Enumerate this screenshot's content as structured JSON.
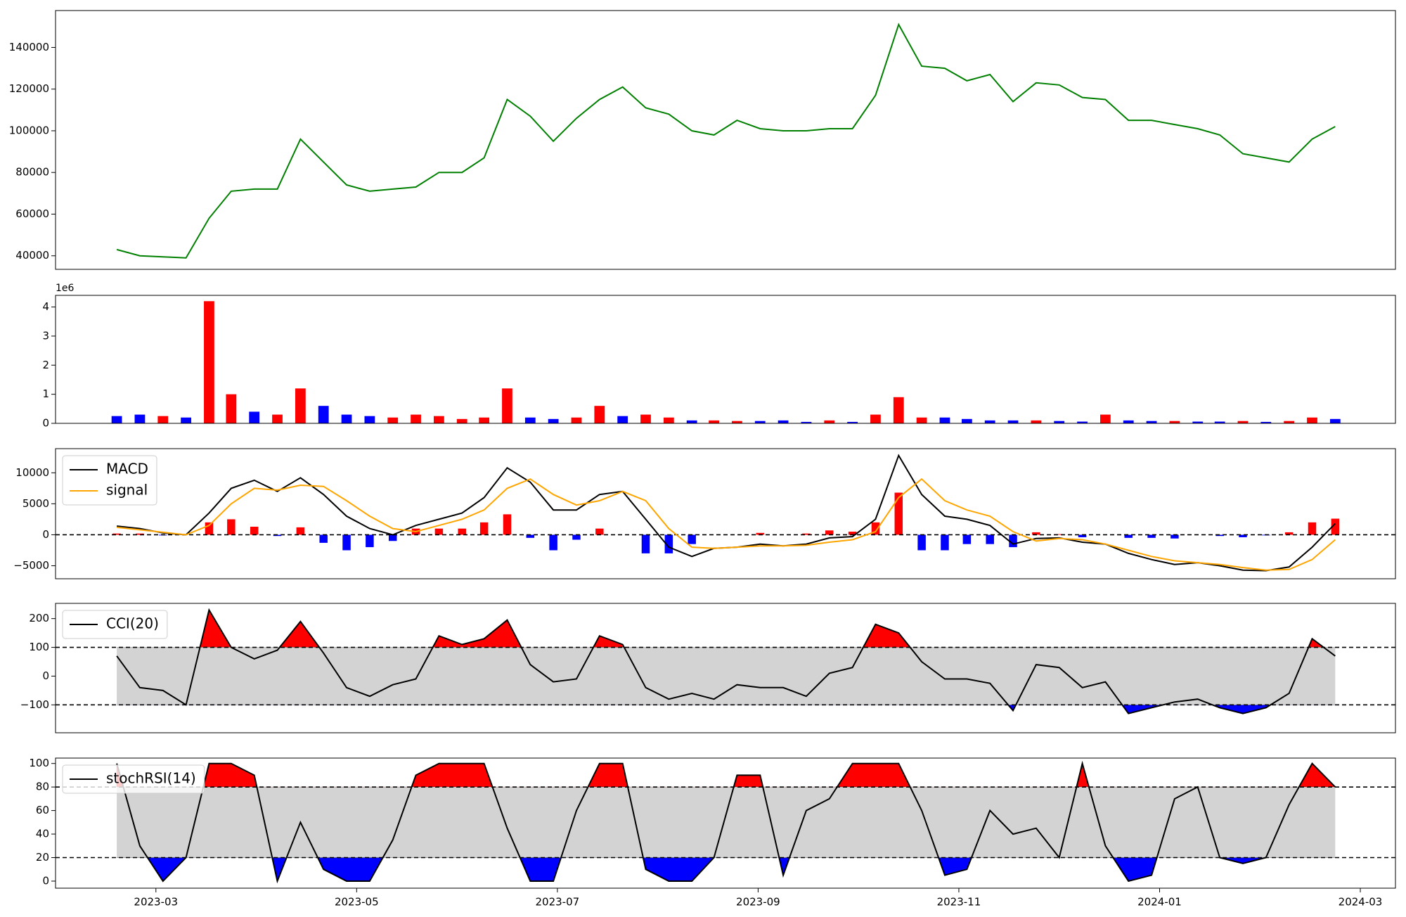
{
  "chart_data": [
    {
      "type": "line",
      "x": [
        -0.39,
        -0.16,
        0.07,
        0.3,
        0.53,
        0.75,
        0.98,
        1.21,
        1.44,
        1.67,
        1.9,
        2.13,
        2.36,
        2.59,
        2.82,
        3.05,
        3.27,
        3.5,
        3.73,
        3.96,
        4.19,
        4.42,
        4.65,
        4.88,
        5.11,
        5.34,
        5.56,
        5.79,
        6.02,
        6.25,
        6.48,
        6.71,
        6.94,
        7.17,
        7.4,
        7.63,
        7.86,
        8.08,
        8.31,
        8.54,
        8.77,
        9.0,
        9.23,
        9.46,
        9.69,
        9.92,
        10.15,
        10.38,
        10.6,
        10.83,
        11.06,
        11.29,
        11.52,
        11.75
      ],
      "series": [
        {
          "color": "green",
          "values": [
            43000,
            40000,
            39500,
            39000,
            58000,
            71000,
            72000,
            72000,
            96000,
            85000,
            74000,
            71000,
            72000,
            73000,
            80000,
            80000,
            87000,
            115000,
            107000,
            95000,
            106000,
            115000,
            121000,
            111000,
            108000,
            100000,
            98000,
            105000,
            101000,
            100000,
            100000,
            101000,
            101000,
            117000,
            151000,
            131000,
            130000,
            124000,
            127000,
            114000,
            123000,
            122000,
            116000,
            115000,
            105000,
            105000,
            103000,
            101000,
            98000,
            89000,
            87000,
            85000,
            96000,
            102000
          ]
        }
      ],
      "xlim": [
        -1,
        12.35
      ],
      "ylim": [
        33500,
        157700
      ],
      "yticks": [
        40000,
        60000,
        80000,
        100000,
        120000,
        140000
      ]
    },
    {
      "type": "bar",
      "x": [
        -0.39,
        -0.16,
        0.07,
        0.3,
        0.53,
        0.75,
        0.98,
        1.21,
        1.44,
        1.67,
        1.9,
        2.13,
        2.36,
        2.59,
        2.82,
        3.05,
        3.27,
        3.5,
        3.73,
        3.96,
        4.19,
        4.42,
        4.65,
        4.88,
        5.11,
        5.34,
        5.56,
        5.79,
        6.02,
        6.25,
        6.48,
        6.71,
        6.94,
        7.17,
        7.4,
        7.63,
        7.86,
        8.08,
        8.31,
        8.54,
        8.77,
        9.0,
        9.23,
        9.46,
        9.69,
        9.92,
        10.15,
        10.38,
        10.6,
        10.83,
        11.06,
        11.29,
        11.52,
        11.75
      ],
      "values": [
        0.25,
        0.3,
        0.25,
        0.2,
        4.2,
        1.0,
        0.4,
        0.3,
        1.2,
        0.6,
        0.3,
        0.25,
        0.2,
        0.3,
        0.25,
        0.15,
        0.2,
        1.2,
        0.2,
        0.15,
        0.2,
        0.6,
        0.25,
        0.3,
        0.2,
        0.1,
        0.1,
        0.08,
        0.08,
        0.1,
        0.05,
        0.1,
        0.05,
        0.3,
        0.9,
        0.2,
        0.2,
        0.15,
        0.1,
        0.1,
        0.1,
        0.08,
        0.06,
        0.3,
        0.1,
        0.08,
        0.08,
        0.06,
        0.06,
        0.08,
        0.05,
        0.08,
        0.2,
        0.15
      ],
      "colors": [
        "blue",
        "blue",
        "red",
        "blue",
        "red",
        "red",
        "blue",
        "red",
        "red",
        "blue",
        "blue",
        "blue",
        "red",
        "red",
        "red",
        "red",
        "red",
        "red",
        "blue",
        "blue",
        "red",
        "red",
        "blue",
        "red",
        "red",
        "blue",
        "red",
        "red",
        "blue",
        "blue",
        "blue",
        "red",
        "blue",
        "red",
        "red",
        "red",
        "blue",
        "blue",
        "blue",
        "blue",
        "red",
        "blue",
        "blue",
        "red",
        "blue",
        "blue",
        "red",
        "blue",
        "blue",
        "red",
        "blue",
        "red",
        "red",
        "blue"
      ],
      "y_offset_label": "1e6",
      "xlim": [
        -1,
        12.35
      ],
      "ylim": [
        0,
        4.4
      ],
      "yticks": [
        0,
        1,
        2,
        3,
        4
      ]
    },
    {
      "type": "macd",
      "x": [
        -0.39,
        -0.16,
        0.07,
        0.3,
        0.53,
        0.75,
        0.98,
        1.21,
        1.44,
        1.67,
        1.9,
        2.13,
        2.36,
        2.59,
        2.82,
        3.05,
        3.27,
        3.5,
        3.73,
        3.96,
        4.19,
        4.42,
        4.65,
        4.88,
        5.11,
        5.34,
        5.56,
        5.79,
        6.02,
        6.25,
        6.48,
        6.71,
        6.94,
        7.17,
        7.4,
        7.63,
        7.86,
        8.08,
        8.31,
        8.54,
        8.77,
        9.0,
        9.23,
        9.46,
        9.69,
        9.92,
        10.15,
        10.38,
        10.6,
        10.83,
        11.06,
        11.29,
        11.52,
        11.75
      ],
      "series": [
        {
          "name": "MACD",
          "color": "black",
          "values": [
            1400,
            1000,
            300,
            0,
            3500,
            7500,
            8800,
            7000,
            9200,
            6500,
            3000,
            1000,
            0,
            1500,
            2500,
            3500,
            6000,
            10800,
            8500,
            4000,
            4000,
            6500,
            7000,
            2500,
            -2000,
            -3500,
            -2200,
            -2000,
            -1500,
            -1800,
            -1500,
            -500,
            -300,
            2500,
            12800,
            6500,
            3000,
            2500,
            1500,
            -1500,
            -600,
            -500,
            -1200,
            -1500,
            -3000,
            -4000,
            -4800,
            -4500,
            -5000,
            -5700,
            -5800,
            -5200,
            -2000,
            1800
          ]
        },
        {
          "name": "signal",
          "color": "orange",
          "values": [
            1200,
            800,
            400,
            0,
            1500,
            5000,
            7500,
            7200,
            8000,
            7800,
            5500,
            3000,
            1000,
            500,
            1500,
            2500,
            4000,
            7500,
            9000,
            6500,
            4800,
            5500,
            7000,
            5500,
            1000,
            -2000,
            -2200,
            -2000,
            -1800,
            -1800,
            -1700,
            -1200,
            -800,
            500,
            6000,
            9000,
            5500,
            4000,
            3000,
            500,
            -1000,
            -600,
            -800,
            -1500,
            -2500,
            -3500,
            -4200,
            -4500,
            -4800,
            -5300,
            -5700,
            -5600,
            -4000,
            -800
          ]
        }
      ],
      "histogram": {
        "values": [
          200,
          200,
          -100,
          0,
          2000,
          2500,
          1300,
          -200,
          1200,
          -1300,
          -2500,
          -2000,
          -1000,
          1000,
          1000,
          1000,
          2000,
          3300,
          -500,
          -2500,
          -800,
          1000,
          0,
          -3000,
          -3000,
          -1500,
          0,
          0,
          300,
          0,
          200,
          700,
          500,
          2000,
          6800,
          -2500,
          -2500,
          -1500,
          -1500,
          -2000,
          400,
          100,
          -400,
          0,
          -500,
          -500,
          -600,
          0,
          -200,
          -400,
          -100,
          400,
          2000,
          2600
        ],
        "colors": {
          "positive": "red",
          "negative": "blue"
        }
      },
      "levels": [
        0
      ],
      "legend": "upper left",
      "xlim": [
        -1,
        12.35
      ],
      "ylim": [
        -7100,
        13900
      ],
      "yticks": [
        {
          "value": -5000,
          "label": "−5000"
        },
        0,
        5000,
        10000
      ]
    },
    {
      "type": "oscillator",
      "x": [
        -0.39,
        -0.16,
        0.07,
        0.3,
        0.53,
        0.75,
        0.98,
        1.21,
        1.44,
        1.67,
        1.9,
        2.13,
        2.36,
        2.59,
        2.82,
        3.05,
        3.27,
        3.5,
        3.73,
        3.96,
        4.19,
        4.42,
        4.65,
        4.88,
        5.11,
        5.34,
        5.56,
        5.79,
        6.02,
        6.25,
        6.48,
        6.71,
        6.94,
        7.17,
        7.4,
        7.63,
        7.86,
        8.08,
        8.31,
        8.54,
        8.77,
        9.0,
        9.23,
        9.46,
        9.69,
        9.92,
        10.15,
        10.38,
        10.6,
        10.83,
        11.06,
        11.29,
        11.52,
        11.75
      ],
      "series": [
        {
          "name": "CCI(20)",
          "color": "black",
          "values": [
            70,
            -40,
            -50,
            -100,
            230,
            100,
            60,
            90,
            190,
            80,
            -40,
            -70,
            -30,
            -10,
            140,
            110,
            130,
            195,
            40,
            -20,
            -10,
            140,
            110,
            -40,
            -80,
            -60,
            -80,
            -30,
            -40,
            -40,
            -70,
            10,
            30,
            180,
            150,
            50,
            -10,
            -10,
            -25,
            -120,
            40,
            30,
            -40,
            -20,
            -130,
            -110,
            -90,
            -80,
            -110,
            -130,
            -110,
            -60,
            130,
            70
          ]
        }
      ],
      "levels": [
        -100,
        100
      ],
      "band_color": "lightgray",
      "fill_colors": {
        "upper": "red",
        "lower": "blue"
      },
      "legend": "upper left",
      "xlim": [
        -1,
        12.35
      ],
      "ylim": [
        -197,
        253
      ],
      "yticks": [
        {
          "value": -100,
          "label": "−100"
        },
        0,
        100,
        200
      ]
    },
    {
      "type": "oscillator",
      "x": [
        -0.39,
        -0.16,
        0.07,
        0.3,
        0.53,
        0.75,
        0.98,
        1.21,
        1.44,
        1.67,
        1.9,
        2.13,
        2.36,
        2.59,
        2.82,
        3.05,
        3.27,
        3.5,
        3.73,
        3.96,
        4.19,
        4.42,
        4.65,
        4.88,
        5.11,
        5.34,
        5.56,
        5.79,
        6.02,
        6.25,
        6.48,
        6.71,
        6.94,
        7.17,
        7.4,
        7.63,
        7.86,
        8.08,
        8.31,
        8.54,
        8.77,
        9.0,
        9.23,
        9.46,
        9.69,
        9.92,
        10.15,
        10.38,
        10.6,
        10.83,
        11.06,
        11.29,
        11.52,
        11.75
      ],
      "series": [
        {
          "name": "stochRSI(14)",
          "color": "black",
          "values": [
            100,
            30,
            0,
            20,
            100,
            100,
            90,
            0,
            50,
            10,
            0,
            0,
            35,
            90,
            100,
            100,
            100,
            45,
            0,
            0,
            60,
            100,
            100,
            10,
            0,
            0,
            20,
            90,
            90,
            5,
            60,
            70,
            100,
            100,
            100,
            60,
            5,
            10,
            60,
            40,
            45,
            20,
            100,
            30,
            0,
            5,
            70,
            80,
            20,
            15,
            20,
            65,
            100,
            80
          ]
        }
      ],
      "levels": [
        20,
        80
      ],
      "band_color": "lightgray",
      "fill_colors": {
        "upper": "red",
        "lower": "blue"
      },
      "legend": "upper left",
      "xlim": [
        -1,
        12.35
      ],
      "ylim": [
        -6,
        104.6
      ],
      "yticks": [
        0,
        20,
        40,
        60,
        80,
        100
      ],
      "xticks": [
        {
          "value": 0,
          "label": "2023-03"
        },
        {
          "value": 2,
          "label": "2023-05"
        },
        {
          "value": 4,
          "label": "2023-07"
        },
        {
          "value": 6,
          "label": "2023-09"
        },
        {
          "value": 8,
          "label": "2023-11"
        },
        {
          "value": 10,
          "label": "2024-01"
        },
        {
          "value": 12,
          "label": "2024-03"
        }
      ]
    }
  ]
}
